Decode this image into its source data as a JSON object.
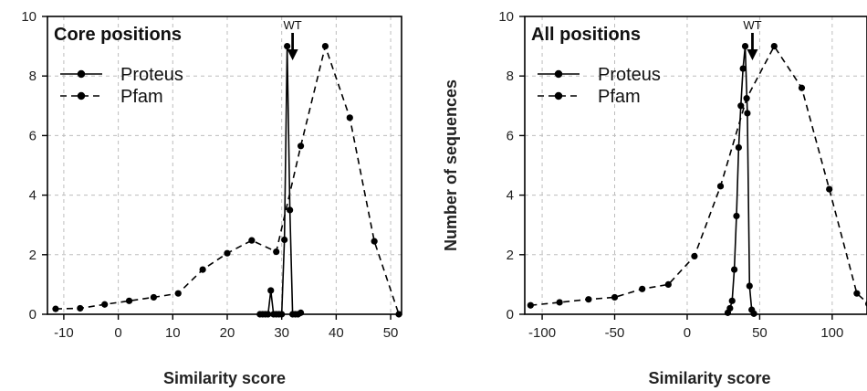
{
  "chart_data": [
    {
      "type": "line",
      "title": "Core positions",
      "xlabel": "Similarity score",
      "ylabel": "",
      "xlim": [
        -13,
        52
      ],
      "ylim": [
        0,
        10
      ],
      "xticks": [
        -10,
        0,
        10,
        20,
        30,
        40,
        50
      ],
      "yticks": [
        0,
        2,
        4,
        6,
        8,
        10
      ],
      "grid": true,
      "legend_position": "top-left",
      "annotation": {
        "text": "WT",
        "x": 32
      },
      "series": [
        {
          "name": "Proteus",
          "style": "solid",
          "x": [
            26,
            26.5,
            27,
            27.5,
            28,
            28.5,
            29,
            29.5,
            30,
            30.5,
            31,
            31.5,
            32,
            32.5,
            33,
            33.5
          ],
          "y": [
            0,
            0,
            0,
            0,
            0.8,
            0,
            0,
            0,
            0,
            2.5,
            9,
            3.5,
            0,
            0,
            0,
            0.05
          ]
        },
        {
          "name": "Pfam",
          "style": "dashed",
          "x": [
            -11.5,
            -7,
            -2.5,
            2,
            6.5,
            11,
            15.5,
            20,
            24.5,
            29,
            33.5,
            38,
            42.5,
            47,
            51.5
          ],
          "y": [
            0.18,
            0.2,
            0.33,
            0.45,
            0.57,
            0.7,
            1.5,
            2.05,
            2.48,
            2.1,
            5.65,
            9,
            6.6,
            2.45,
            0
          ]
        }
      ]
    },
    {
      "type": "line",
      "title": "All positions",
      "xlabel": "Similarity score",
      "ylabel": "Number of sequences",
      "xlim": [
        -112,
        124
      ],
      "ylim": [
        0,
        10
      ],
      "xticks": [
        -100,
        -50,
        0,
        50,
        100
      ],
      "yticks": [
        0,
        2,
        4,
        6,
        8,
        10
      ],
      "grid": true,
      "legend_position": "top-left",
      "annotation": {
        "text": "WT",
        "x": 45
      },
      "series": [
        {
          "name": "Proteus",
          "style": "solid",
          "x": [
            28,
            29.5,
            31,
            32.5,
            34,
            35.5,
            37,
            38.5,
            40,
            41.5,
            43,
            44.5,
            46
          ],
          "y": [
            0.05,
            0.2,
            0.45,
            1.5,
            3.3,
            5.6,
            7.0,
            8.25,
            9,
            6.75,
            0.95,
            0.15,
            0.02
          ]
        },
        {
          "name": "Pfam",
          "style": "dashed",
          "x": [
            -108,
            -88,
            -68,
            -50,
            -31,
            -13,
            5,
            23,
            41,
            60,
            79,
            98,
            117,
            125
          ],
          "y": [
            0.3,
            0.4,
            0.5,
            0.57,
            0.85,
            1.0,
            1.95,
            4.3,
            7.25,
            9,
            7.6,
            4.2,
            0.7,
            0.35
          ]
        }
      ]
    }
  ]
}
